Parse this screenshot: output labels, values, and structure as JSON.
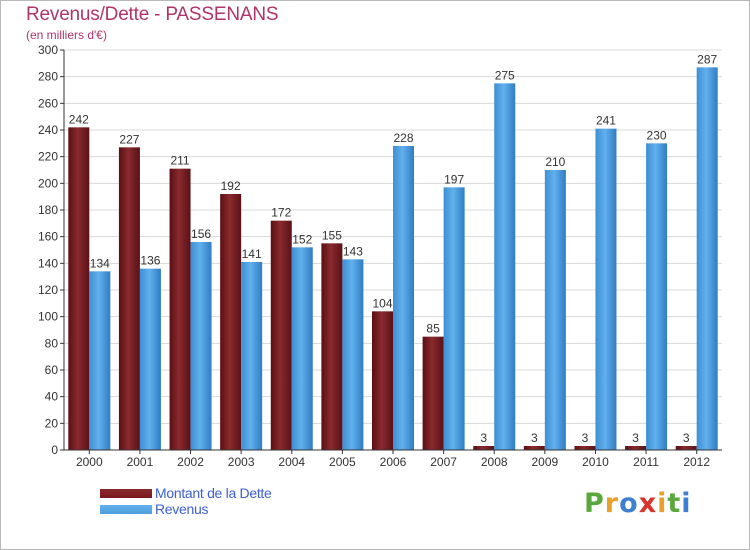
{
  "header": {
    "title": "Revenus/Dette - PASSENANS",
    "subtitle": "(en milliers d'€)"
  },
  "logo": {
    "letters": [
      "P",
      "r",
      "o",
      "x",
      "i",
      "t",
      "i"
    ],
    "colors": [
      "#5aa83c",
      "#e8a12d",
      "#3d7fd1",
      "#d9342b",
      "#e8a12d",
      "#5aa83c",
      "#3d7fd1"
    ]
  },
  "colors": {
    "debt": "#7a1a1f",
    "revenue": "#4f9fdf",
    "grid": "#d8d8d8",
    "axis": "#333333"
  },
  "chart_data": {
    "type": "bar",
    "title": "Revenus/Dette - PASSENANS",
    "subtitle": "(en milliers d'€)",
    "xlabel": "",
    "ylabel": "",
    "ylim": [
      0,
      300
    ],
    "yticks": [
      0,
      20,
      40,
      60,
      80,
      100,
      120,
      140,
      160,
      180,
      200,
      220,
      240,
      260,
      280,
      300
    ],
    "grid": true,
    "legend_position": "bottom-left",
    "categories": [
      "2000",
      "2001",
      "2002",
      "2003",
      "2004",
      "2005",
      "2006",
      "2007",
      "2008",
      "2009",
      "2010",
      "2011",
      "2012"
    ],
    "series": [
      {
        "name": "Montant de la Dette",
        "values": [
          242,
          227,
          211,
          192,
          172,
          155,
          104,
          85,
          3,
          3,
          3,
          3,
          3
        ],
        "labels": [
          "242",
          "227",
          "211",
          "192",
          "172",
          "155",
          "104",
          "85",
          "3",
          "3",
          "3",
          "3",
          "3"
        ]
      },
      {
        "name": "Revenus",
        "values": [
          134,
          136,
          156,
          141,
          152,
          143,
          228,
          197,
          275,
          210,
          241,
          230,
          287
        ],
        "labels": [
          "134",
          "136",
          "156",
          "141",
          "152",
          "143",
          "228",
          "197",
          "275",
          "210",
          "241",
          "230",
          "287"
        ]
      }
    ]
  }
}
